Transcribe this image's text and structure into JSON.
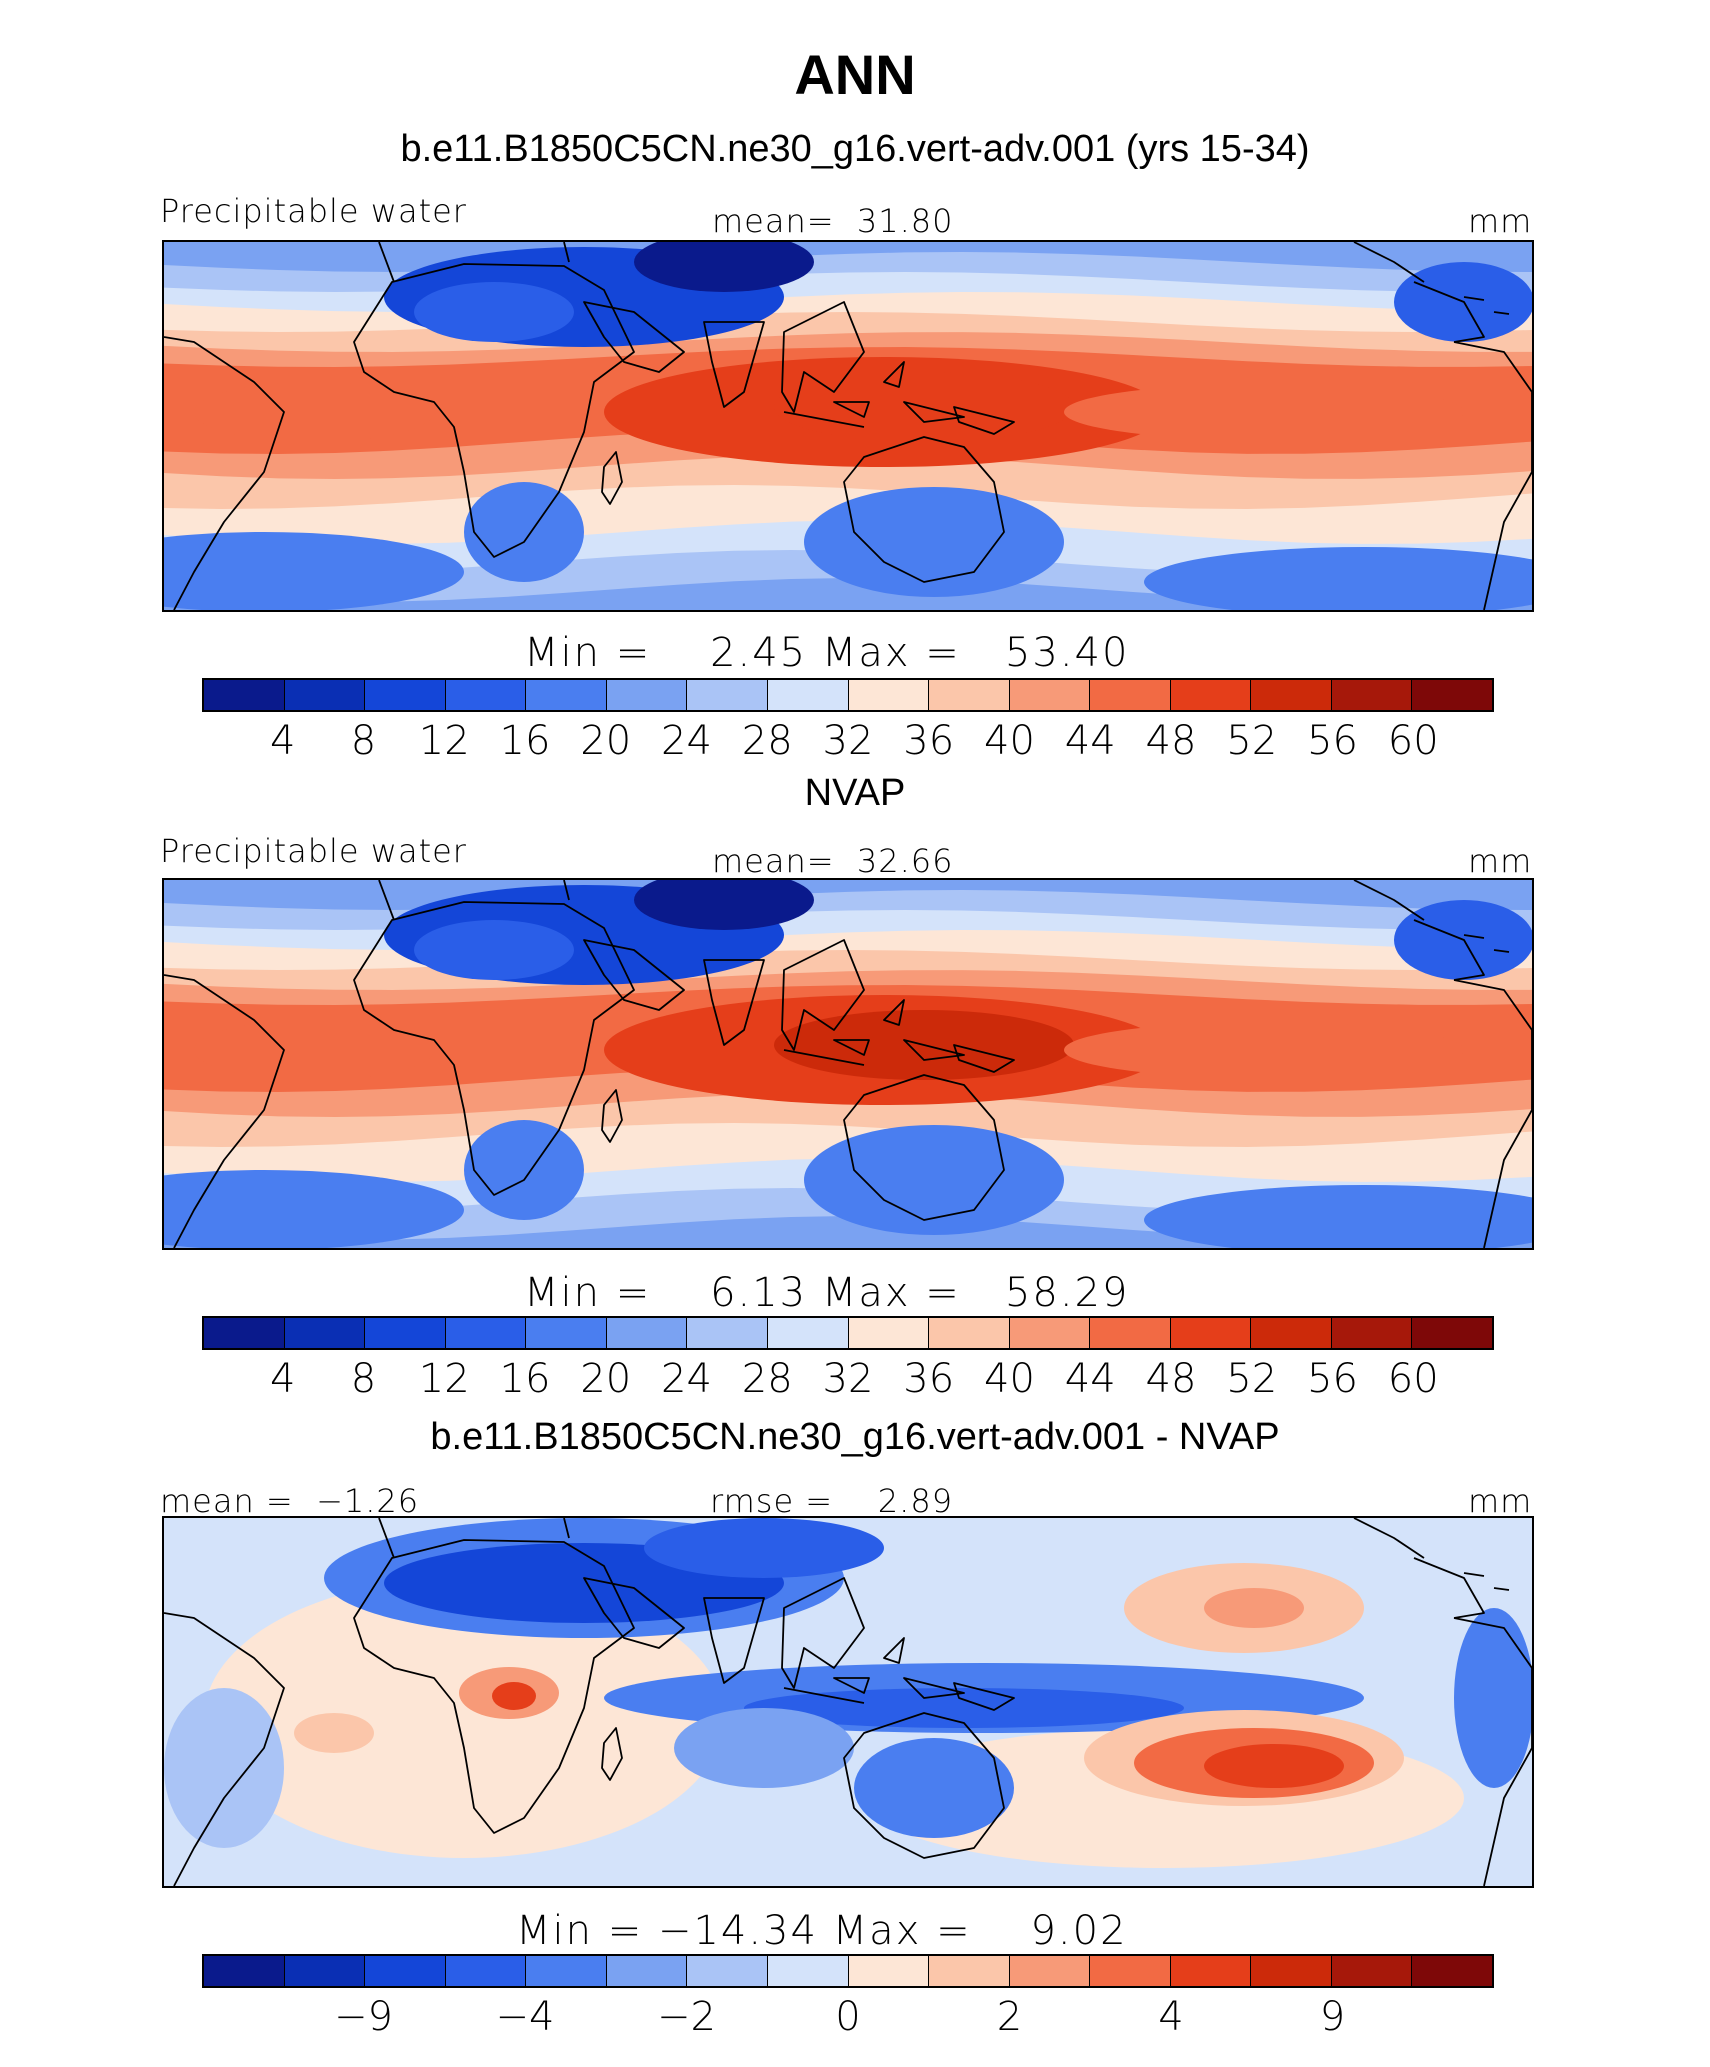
{
  "figure": {
    "title": "ANN"
  },
  "colors": [
    "#0a1a8c",
    "#0a2fb4",
    "#1446d8",
    "#2a5ee8",
    "#4a7ef0",
    "#7aa2f2",
    "#aac4f6",
    "#d4e3fa",
    "#fde6d6",
    "#fbc6aa",
    "#f79a78",
    "#f26a44",
    "#e53e1a",
    "#cc2a0a",
    "#a6180a",
    "#7e0808"
  ],
  "panels": [
    {
      "title": "b.e11.B1850C5CN.ne30_g16.vert-adv.001 (yrs 15-34)",
      "left_label": "Precipitable water",
      "center_label": "mean=  31.80",
      "right_label": "mm",
      "minmax": "Min =    2.45 Max =   53.40",
      "ticks": [
        "4",
        "8",
        "12",
        "16",
        "20",
        "24",
        "28",
        "32",
        "36",
        "40",
        "44",
        "48",
        "52",
        "56",
        "60"
      ],
      "field": {
        "tropical_peak_mm": 53.4,
        "polar_min_mm": 2.45,
        "mean_mm": 31.8
      }
    },
    {
      "title": "NVAP",
      "left_label": "Precipitable water",
      "center_label": "mean=  32.66",
      "right_label": "mm",
      "minmax": "Min =    6.13 Max =   58.29",
      "ticks": [
        "4",
        "8",
        "12",
        "16",
        "20",
        "24",
        "28",
        "32",
        "36",
        "40",
        "44",
        "48",
        "52",
        "56",
        "60"
      ],
      "field": {
        "tropical_peak_mm": 58.29,
        "polar_min_mm": 6.13,
        "mean_mm": 32.66
      }
    },
    {
      "title": "b.e11.B1850C5CN.ne30_g16.vert-adv.001 - NVAP",
      "left_label": "mean =  −1.26",
      "center_label": "rmse =    2.89",
      "right_label": "mm",
      "minmax": "Min = −14.34 Max =    9.02",
      "ticks": [
        "−9",
        "−4",
        "−2",
        "0",
        "2",
        "4",
        "9"
      ],
      "field": {
        "min_mm": -14.34,
        "max_mm": 9.02,
        "mean_mm": -1.26
      }
    }
  ]
}
